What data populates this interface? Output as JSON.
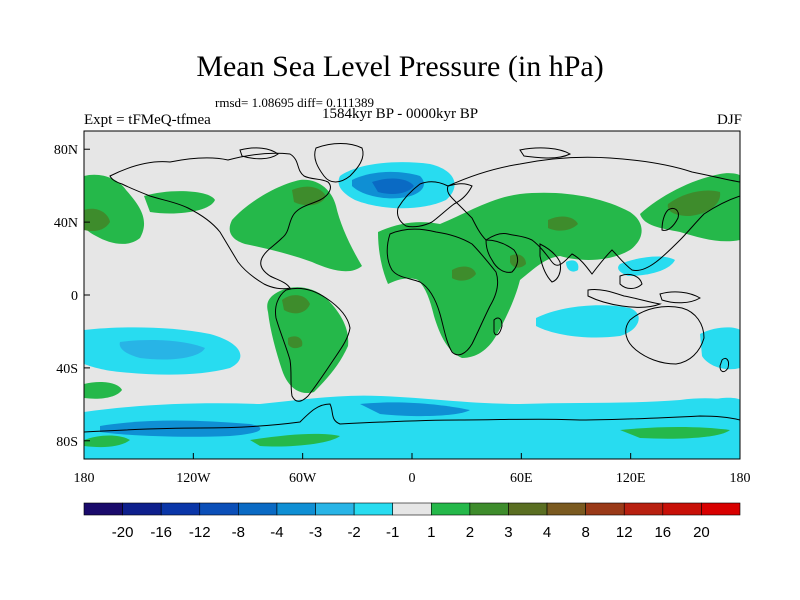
{
  "header": {
    "title": "Mean Sea Level Pressure (in hPa)",
    "stats": "rmsd= 1.08695 diff= 0.111389",
    "period": "1584kyr BP - 0000kyr BP",
    "experiment": "Expt = tFMeQ-tfmea",
    "season": "DJF"
  },
  "map": {
    "projection": "cylindrical equidistant",
    "lon_range": [
      -180,
      180
    ],
    "lat_range": [
      -90,
      90
    ],
    "x_ticks": [
      "180",
      "120W",
      "60W",
      "0",
      "60E",
      "120E",
      "180"
    ],
    "y_ticks": [
      "80N",
      "40N",
      "0",
      "40S",
      "80S"
    ],
    "background": "#e6e6e6",
    "coastline_color": "#000000"
  },
  "colorbar": {
    "labels": [
      "-20",
      "-16",
      "-12",
      "-8",
      "-4",
      "-3",
      "-2",
      "-1",
      "1",
      "2",
      "3",
      "4",
      "8",
      "12",
      "16",
      "20"
    ],
    "colors": [
      "#1a0a6b",
      "#0e1f8c",
      "#0a36a8",
      "#0b4fb8",
      "#0a6ac4",
      "#0f8fd4",
      "#28b4e6",
      "#28dcf0",
      "#e6e6e6",
      "#25b84a",
      "#3e8c2c",
      "#5a6e22",
      "#7a5a20",
      "#9a3a18",
      "#b82010",
      "#c81008",
      "#d80000"
    ]
  }
}
